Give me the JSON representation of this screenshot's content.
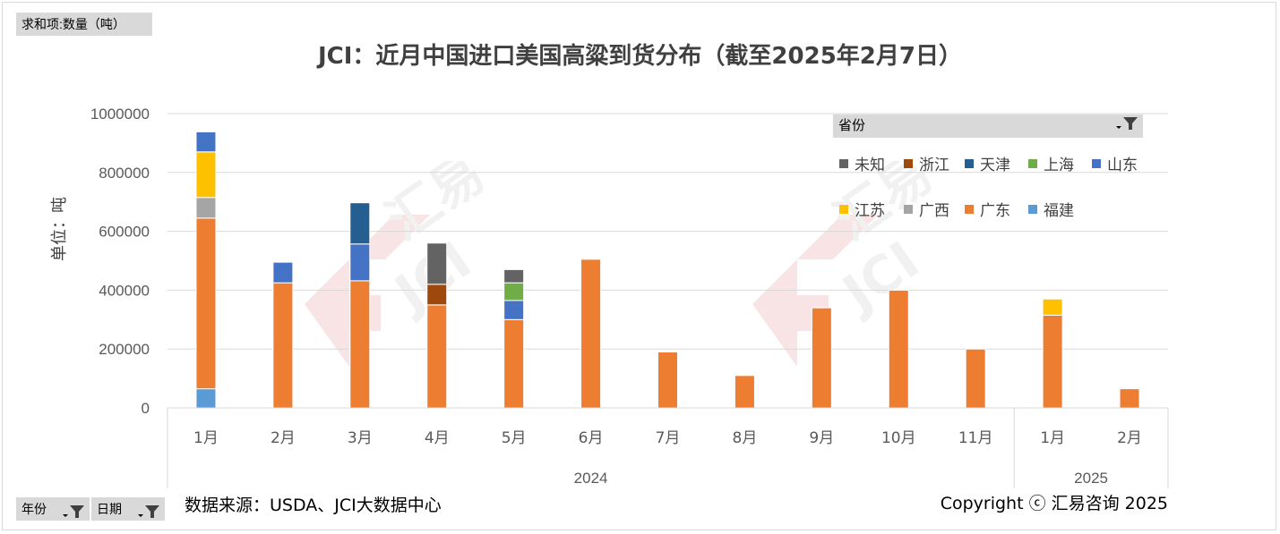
{
  "pivot": {
    "value_field": "求和项:数量（吨）",
    "filter_year": "年份",
    "filter_date": "日期",
    "legend_header": "省份"
  },
  "source_text": "数据来源：USDA、JCI大数据中心",
  "copyright_text": "Copyright ⓒ 汇易咨询 2025",
  "watermark": {
    "text_top": "汇易",
    "text_bottom": "JCI"
  },
  "colors": {
    "未知": "#636363",
    "浙江": "#9e480e",
    "天津": "#255e91",
    "上海": "#70ad47",
    "山东": "#4472c4",
    "江苏": "#ffc000",
    "广西": "#a5a5a5",
    "广东": "#ed7d31",
    "福建": "#5b9bd5"
  },
  "chart_data": {
    "type": "bar",
    "stacked": true,
    "title": "JCI：近月中国进口美国高粱到货分布（截至2025年2月7日）",
    "ylabel": "单位：吨",
    "ylim": [
      0,
      1000000
    ],
    "yticks": [
      0,
      200000,
      400000,
      600000,
      800000,
      1000000
    ],
    "grid": true,
    "legend_position": "top-right",
    "legend_order": [
      "未知",
      "浙江",
      "天津",
      "上海",
      "山东",
      "江苏",
      "广西",
      "广东",
      "福建"
    ],
    "stack_order": [
      "福建",
      "广东",
      "广西",
      "江苏",
      "山东",
      "上海",
      "天津",
      "浙江",
      "未知"
    ],
    "groups": [
      {
        "label": "2024",
        "categories": [
          "1月",
          "2月",
          "3月",
          "4月",
          "5月",
          "6月",
          "7月",
          "8月",
          "9月",
          "10月",
          "11月"
        ]
      },
      {
        "label": "2025",
        "categories": [
          "1月",
          "2月"
        ]
      }
    ],
    "categories": [
      "1月",
      "2月",
      "3月",
      "4月",
      "5月",
      "6月",
      "7月",
      "8月",
      "9月",
      "10月",
      "11月",
      "1月",
      "2月"
    ],
    "series": [
      {
        "name": "福建",
        "values": [
          65000,
          0,
          0,
          0,
          0,
          0,
          0,
          0,
          0,
          0,
          0,
          0,
          0
        ]
      },
      {
        "name": "广东",
        "values": [
          580000,
          425000,
          432000,
          350000,
          300000,
          505000,
          190000,
          110000,
          340000,
          400000,
          200000,
          315000,
          65000
        ]
      },
      {
        "name": "广西",
        "values": [
          70000,
          0,
          0,
          0,
          0,
          0,
          0,
          0,
          0,
          0,
          0,
          0,
          0
        ]
      },
      {
        "name": "江苏",
        "values": [
          155000,
          0,
          0,
          0,
          0,
          0,
          0,
          0,
          0,
          0,
          0,
          55000,
          0
        ]
      },
      {
        "name": "山东",
        "values": [
          68000,
          70000,
          125000,
          0,
          65000,
          0,
          0,
          0,
          0,
          0,
          0,
          0,
          0
        ]
      },
      {
        "name": "上海",
        "values": [
          0,
          0,
          0,
          0,
          60000,
          0,
          0,
          0,
          0,
          0,
          0,
          0,
          0
        ]
      },
      {
        "name": "天津",
        "values": [
          0,
          0,
          140000,
          0,
          0,
          0,
          0,
          0,
          0,
          0,
          0,
          0,
          0
        ]
      },
      {
        "name": "浙江",
        "values": [
          0,
          0,
          0,
          70000,
          0,
          0,
          0,
          0,
          0,
          0,
          0,
          0,
          0
        ]
      },
      {
        "name": "未知",
        "values": [
          0,
          0,
          0,
          140000,
          45000,
          0,
          0,
          0,
          0,
          0,
          0,
          0,
          0
        ]
      }
    ]
  }
}
